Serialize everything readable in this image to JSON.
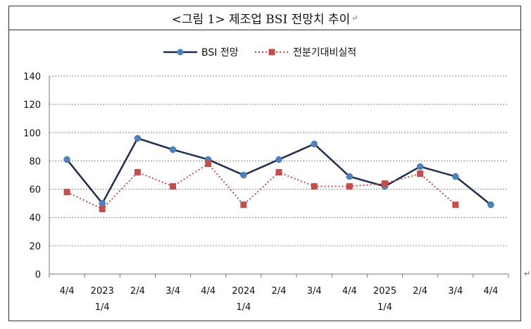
{
  "title": "<그림 1> 제조업 BSI 전망치 추이",
  "chart_data": {
    "type": "line",
    "categories": [
      [
        "4/4",
        ""
      ],
      [
        "2023",
        "1/4"
      ],
      [
        "2/4",
        ""
      ],
      [
        "3/4",
        ""
      ],
      [
        "4/4",
        ""
      ],
      [
        "2024",
        "1/4"
      ],
      [
        "2/4",
        ""
      ],
      [
        "3/4",
        ""
      ],
      [
        "4/4",
        ""
      ],
      [
        "2025",
        "1/4"
      ],
      [
        "2/4",
        ""
      ],
      [
        "3/4",
        ""
      ],
      [
        "4/4",
        ""
      ]
    ],
    "series": [
      {
        "name": "BSI 전망",
        "color": "#1f2d4e",
        "marker_color": "#4f81bd",
        "style": "solid",
        "marker": "circle",
        "values": [
          81,
          50,
          96,
          88,
          81,
          70,
          81,
          92,
          69,
          62,
          76,
          69,
          49
        ]
      },
      {
        "name": "전분기대비실적",
        "color": "#c0504d",
        "marker_color": "#c0504d",
        "style": "dotted",
        "marker": "square",
        "values": [
          58,
          46,
          72,
          62,
          78,
          49,
          72,
          62,
          62,
          64,
          71,
          49,
          null
        ]
      }
    ],
    "ylim": [
      0,
      140
    ],
    "yticks": [
      0,
      20,
      40,
      60,
      80,
      100,
      120,
      140
    ],
    "grid": true,
    "legend": "top-center"
  }
}
